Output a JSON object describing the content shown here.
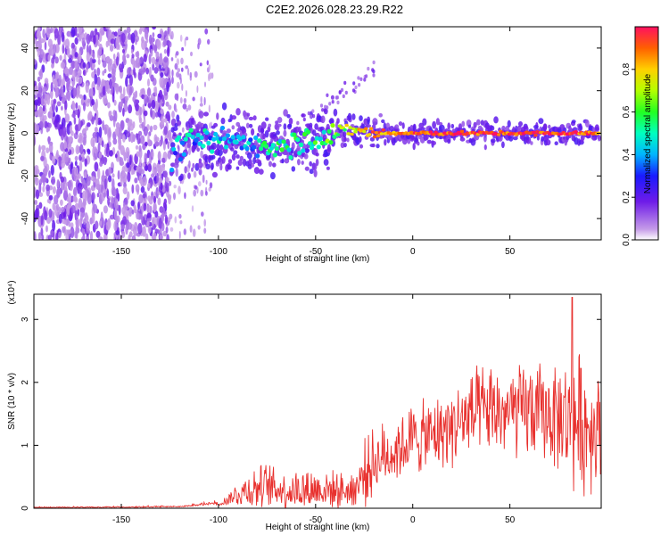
{
  "title": "C2E2.2026.028.23.29.R22",
  "chart_data": [
    {
      "type": "heatmap",
      "name": "spectrogram",
      "xlabel": "Height of straight line (km)",
      "ylabel": "Frequency (Hz)",
      "xlim": [
        -195,
        97
      ],
      "ylim": [
        -50,
        50
      ],
      "xticks": [
        "-150",
        "-100",
        "-50",
        "0",
        "50"
      ],
      "xtick_values": [
        -150,
        -100,
        -50,
        0,
        50
      ],
      "yticks": [
        "40",
        "20",
        "0",
        "-20",
        "-40"
      ],
      "ytick_values": [
        40,
        20,
        0,
        -20,
        -40
      ],
      "colorbar": {
        "label": "Normalized spectral amplitude",
        "range": [
          0,
          1
        ],
        "ticks": [
          "0.0",
          "0.2",
          "0.4",
          "0.6",
          "0.8"
        ],
        "tick_values": [
          0.0,
          0.2,
          0.4,
          0.6,
          0.8
        ]
      },
      "regions": [
        {
          "x_range": [
            -195,
            -125
          ],
          "freq_range": [
            -50,
            50
          ],
          "amplitude": 0.05,
          "description_key": "noise"
        },
        {
          "x_range": [
            -125,
            -105
          ],
          "freq_range": [
            -50,
            50
          ],
          "amplitude": 0.03,
          "description_key": "sparse"
        },
        {
          "x_range": [
            -122,
            -40
          ],
          "freq_center": [
            -12,
            0
          ],
          "amplitude": 0.4
        },
        {
          "x_range": [
            -40,
            95
          ],
          "freq_center": [
            0,
            0
          ],
          "amplitude": 0.9
        }
      ],
      "ridge": {
        "x": [
          -125,
          -120,
          -110,
          -100,
          -90,
          -80,
          -70,
          -60,
          -50,
          -40,
          -30,
          -20,
          -10,
          0,
          20,
          40,
          60,
          80,
          95
        ],
        "freq": [
          -12,
          -6,
          -3,
          -4,
          -3,
          -5,
          -6,
          -3,
          -2,
          0,
          2,
          0,
          0,
          0,
          0,
          0,
          0,
          0,
          0
        ],
        "amplitude": [
          0.3,
          0.45,
          0.4,
          0.45,
          0.4,
          0.45,
          0.5,
          0.5,
          0.55,
          0.6,
          0.75,
          0.85,
          0.9,
          0.95,
          0.95,
          0.95,
          0.95,
          0.95,
          0.9
        ]
      }
    },
    {
      "type": "line",
      "name": "snr",
      "xlabel": "Height of straight line (km)",
      "ylabel": "SNR (10 * v/v)",
      "scale_label": "(x10⁴)",
      "xlim": [
        -195,
        97
      ],
      "ylim": [
        0,
        3.4
      ],
      "xticks": [
        "-150",
        "-100",
        "-50",
        "0",
        "50"
      ],
      "xtick_values": [
        -150,
        -100,
        -50,
        0,
        50
      ],
      "yticks": [
        "0",
        "1",
        "2",
        "3"
      ],
      "ytick_values": [
        0,
        1,
        2,
        3
      ],
      "color": "#e8312e",
      "envelope": {
        "x": [
          -195,
          -150,
          -120,
          -100,
          -95,
          -85,
          -75,
          -65,
          -55,
          -45,
          -35,
          -30,
          -25,
          -20,
          -10,
          0,
          10,
          20,
          30,
          40,
          50,
          60,
          70,
          80,
          85,
          90,
          95
        ],
        "mean": [
          0.01,
          0.01,
          0.02,
          0.06,
          0.15,
          0.3,
          0.35,
          0.28,
          0.3,
          0.3,
          0.28,
          0.3,
          0.55,
          0.75,
          0.9,
          1.1,
          1.15,
          1.3,
          1.45,
          1.55,
          1.5,
          1.55,
          1.5,
          1.4,
          1.35,
          1.3,
          1.3
        ],
        "spread": [
          0.005,
          0.01,
          0.01,
          0.03,
          0.1,
          0.3,
          0.35,
          0.3,
          0.35,
          0.3,
          0.25,
          0.3,
          0.5,
          0.5,
          0.5,
          0.55,
          0.55,
          0.6,
          0.7,
          0.7,
          0.7,
          0.75,
          0.75,
          0.9,
          1.1,
          1.0,
          0.8
        ]
      },
      "peak": {
        "x": 82,
        "y": 3.35
      }
    }
  ]
}
